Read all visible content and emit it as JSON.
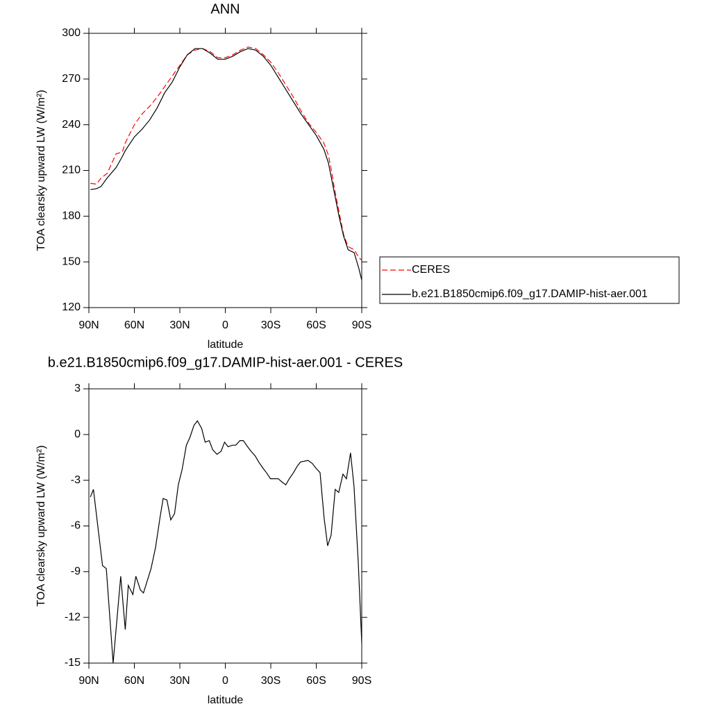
{
  "chart_data": [
    {
      "type": "line",
      "title": "ANN",
      "xlabel": "latitude",
      "ylabel": "TOA clearsky upward LW (W/m²)",
      "x": [
        89,
        85,
        82,
        78,
        72,
        68,
        66,
        60,
        55,
        50,
        45,
        40,
        35,
        30,
        25,
        20,
        15,
        10,
        5,
        0,
        -5,
        -10,
        -15,
        -20,
        -25,
        -30,
        -35,
        -40,
        -45,
        -50,
        -55,
        -60,
        -65,
        -68,
        -70,
        -72,
        -75,
        -78,
        -81,
        -85,
        -88,
        -90
      ],
      "series": [
        {
          "name": "CERES",
          "color": "#ff0000",
          "dashed": true,
          "values": [
            201.5,
            201,
            205,
            208,
            221,
            222,
            228,
            240,
            247,
            252,
            258,
            265,
            272,
            279,
            286,
            289,
            290,
            288,
            284,
            284,
            286,
            289,
            291,
            290,
            286,
            281,
            274,
            266,
            258,
            249,
            241,
            235,
            228,
            220,
            210,
            198,
            183,
            168,
            160,
            158,
            153,
            151
          ]
        },
        {
          "name": "b.e21.B1850cmip6.f09_g17.DAMIP-hist-aer.001",
          "color": "#000000",
          "dashed": false,
          "values": [
            197.5,
            198,
            199.5,
            205,
            212,
            219,
            223,
            232,
            237,
            243,
            251,
            261,
            268,
            278,
            286,
            290,
            290,
            287,
            283,
            283,
            285,
            288,
            290,
            289,
            285,
            279,
            271,
            263,
            255,
            247,
            240,
            233,
            224,
            215,
            205,
            195,
            180,
            167,
            158,
            156,
            146,
            138
          ]
        }
      ],
      "xlim": [
        90,
        -90
      ],
      "xticks": [
        {
          "value": 90,
          "label": "90N"
        },
        {
          "value": 60,
          "label": "60N"
        },
        {
          "value": 30,
          "label": "30N"
        },
        0,
        {
          "value": -30,
          "label": "30S"
        },
        {
          "value": -60,
          "label": "60S"
        },
        {
          "value": -90,
          "label": "90S"
        }
      ],
      "ylim": [
        120,
        300
      ],
      "yticks": [
        120,
        150,
        180,
        210,
        240,
        270,
        300
      ],
      "legend": "right"
    },
    {
      "type": "line",
      "title": "b.e21.B1850cmip6.f09_g17.DAMIP-hist-aer.001 - CERES",
      "xlabel": "latitude",
      "ylabel": "TOA clearsky upward LW (W/m²)",
      "x": [
        89,
        87,
        81,
        78.5,
        74,
        69,
        66,
        64,
        61,
        59,
        56,
        54,
        49,
        46,
        43,
        41,
        38.5,
        36,
        33.5,
        31,
        28.5,
        25.7,
        23.4,
        20.7,
        18.4,
        15.6,
        13.3,
        10.6,
        8.3,
        5.5,
        2.8,
        0.5,
        -1.8,
        -4.6,
        -6.9,
        -9.6,
        -11.9,
        -14.7,
        -17,
        -19.7,
        -22,
        -24.8,
        -27.1,
        -29.8,
        -32.1,
        -34.9,
        -37.2,
        -39.9,
        -42.2,
        -45,
        -47.3,
        -49.6,
        -54.6,
        -57.4,
        -59.7,
        -62.5,
        -65.2,
        -67.5,
        -69.8,
        -72.5,
        -74.8,
        -77.6,
        -79.9,
        -82.6,
        -84.9,
        -87.7,
        -90
      ],
      "series": [
        {
          "color": "#000000",
          "dashed": false,
          "values": [
            -4.1,
            -3.6,
            -8.6,
            -8.8,
            -15,
            -9.3,
            -12.8,
            -9.9,
            -10.5,
            -9.3,
            -10.2,
            -10.4,
            -8.8,
            -7.4,
            -5.4,
            -4.2,
            -4.3,
            -5.6,
            -5.2,
            -3.3,
            -2.3,
            -0.7,
            -0.2,
            0.6,
            0.9,
            0.4,
            -0.5,
            -0.4,
            -1,
            -1.3,
            -1.1,
            -0.5,
            -0.8,
            -0.7,
            -0.7,
            -0.4,
            -0.4,
            -0.8,
            -1.1,
            -1.4,
            -1.8,
            -2.2,
            -2.5,
            -2.9,
            -2.9,
            -2.9,
            -3.1,
            -3.3,
            -2.9,
            -2.5,
            -2.1,
            -1.8,
            -1.7,
            -1.9,
            -2.2,
            -2.5,
            -5.5,
            -7.3,
            -6.6,
            -3.6,
            -3.8,
            -2.6,
            -2.9,
            -1.2,
            -3.4,
            -8.4,
            -13.7
          ]
        }
      ],
      "xlim": [
        90,
        -90
      ],
      "xticks": [
        {
          "value": 90,
          "label": "90N"
        },
        {
          "value": 60,
          "label": "60N"
        },
        {
          "value": 30,
          "label": "30N"
        },
        0,
        {
          "value": -30,
          "label": "30S"
        },
        {
          "value": -60,
          "label": "60S"
        },
        {
          "value": -90,
          "label": "90S"
        }
      ],
      "ylim": [
        -15,
        3
      ],
      "yticks": [
        -15,
        -12,
        -9,
        -6,
        -3,
        0,
        3
      ]
    }
  ]
}
